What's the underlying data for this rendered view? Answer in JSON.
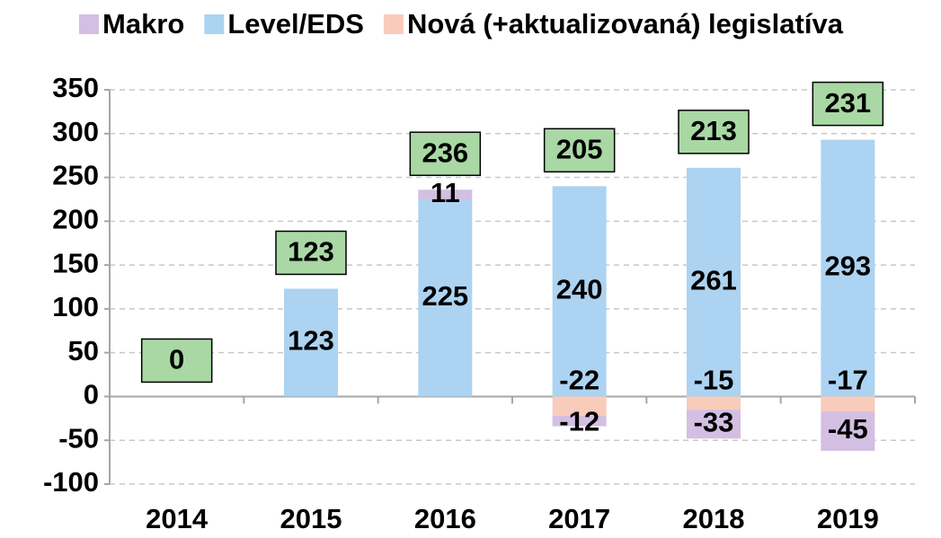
{
  "chart_data": {
    "type": "stacked_bar",
    "categories": [
      "2014",
      "2015",
      "2016",
      "2017",
      "2018",
      "2019"
    ],
    "series": [
      {
        "name": "Makro",
        "color": "#d3bfe2",
        "values": [
          null,
          null,
          11,
          -12,
          -33,
          -45
        ]
      },
      {
        "name": "Level/EDS",
        "color": "#acd3f1",
        "values": [
          null,
          123,
          225,
          240,
          261,
          293
        ]
      },
      {
        "name": "Nová (+aktualizovaná) legislatíva",
        "color": "#f9cbba",
        "values": [
          null,
          null,
          null,
          -22,
          -15,
          -17
        ]
      }
    ],
    "totals": [
      0,
      123,
      236,
      205,
      213,
      231
    ],
    "totals_color": "#a9d8a4",
    "ylim": [
      -100,
      350
    ],
    "yticks": [
      -100,
      -50,
      0,
      50,
      100,
      150,
      200,
      250,
      300,
      350
    ],
    "grid": true,
    "legend": "top"
  }
}
